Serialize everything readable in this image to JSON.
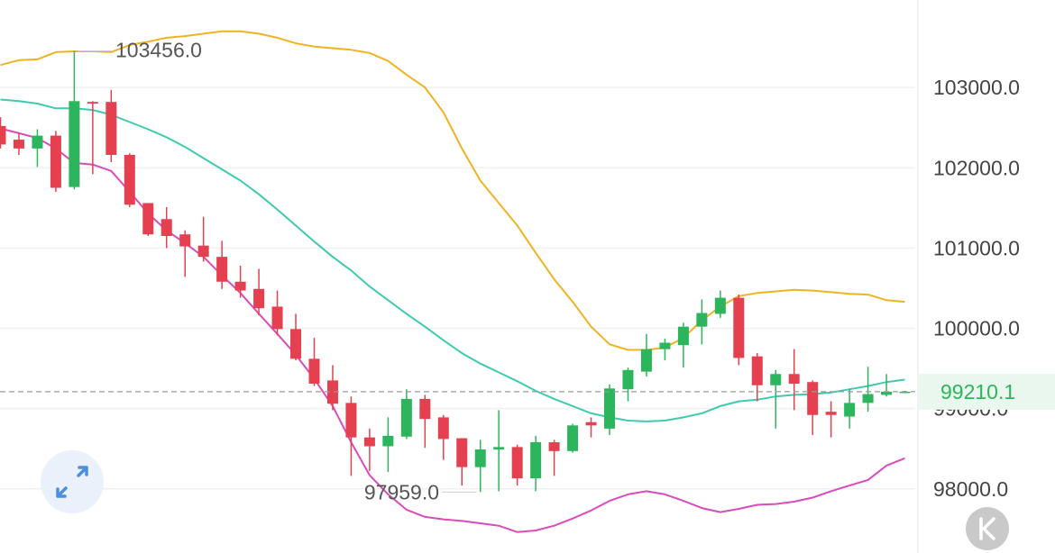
{
  "chart_data": {
    "type": "candlestick",
    "ylim": [
      97200,
      104090
    ],
    "yticks": [
      {
        "value": 98000,
        "label": "98000.0"
      },
      {
        "value": 99000,
        "label": "99000.0"
      },
      {
        "value": 100000,
        "label": "100000.0"
      },
      {
        "value": 101000,
        "label": "101000.0"
      },
      {
        "value": 102000,
        "label": "102000.0"
      },
      {
        "value": 103000,
        "label": "103000.0"
      }
    ],
    "grid": true,
    "up_color": "#2db55d",
    "down_color": "#e5404f",
    "candles": {
      "open": [
        102520,
        102350,
        102240,
        102400,
        101760,
        102820,
        102820,
        102160,
        101560,
        101360,
        101170,
        101030,
        100890,
        100580,
        100490,
        100270,
        99990,
        99620,
        99350,
        99070,
        98640,
        98530,
        98650,
        99120,
        98890,
        98630,
        98270,
        98490,
        98520,
        98130,
        98580,
        98470,
        98830,
        98750,
        99240,
        99460,
        99740,
        99790,
        100020,
        100180,
        100380,
        99650,
        99290,
        99430,
        99330,
        98960,
        98900,
        99070,
        99170,
        99200
      ],
      "high": [
        102630,
        102430,
        102480,
        102460,
        103456,
        102830,
        102970,
        102180,
        101560,
        101510,
        101220,
        101390,
        101090,
        100780,
        100740,
        100470,
        100180,
        99880,
        99540,
        99150,
        98750,
        98890,
        99240,
        99170,
        98920,
        98630,
        98610,
        98980,
        98550,
        98660,
        98610,
        98810,
        98890,
        99300,
        99510,
        99930,
        99870,
        100070,
        100360,
        100470,
        100420,
        99690,
        99480,
        99740,
        99350,
        99090,
        99240,
        99520,
        99430,
        99220
      ],
      "low": [
        102240,
        102160,
        102010,
        101700,
        101730,
        101920,
        102070,
        101510,
        101150,
        101000,
        100640,
        100830,
        100490,
        100380,
        100160,
        99910,
        99600,
        99280,
        98980,
        98160,
        98220,
        98210,
        98620,
        98510,
        98360,
        98040,
        97959,
        97970,
        98040,
        97970,
        98160,
        98450,
        98640,
        98670,
        99090,
        99400,
        99600,
        99510,
        99800,
        100130,
        99540,
        99090,
        98750,
        98980,
        98670,
        98640,
        98750,
        98960,
        99150,
        99190
      ],
      "close": [
        102290,
        102240,
        102400,
        101750,
        102830,
        102800,
        102160,
        101540,
        101170,
        101150,
        101020,
        100890,
        100580,
        100470,
        100250,
        99990,
        99620,
        99310,
        99060,
        98640,
        98530,
        98660,
        99120,
        98870,
        98620,
        98270,
        98490,
        98520,
        98130,
        98580,
        98470,
        98790,
        98790,
        99250,
        99480,
        99740,
        99820,
        100020,
        100190,
        100380,
        99630,
        99290,
        99430,
        99310,
        98920,
        98920,
        99070,
        99180,
        99210,
        99210.1
      ]
    },
    "lines": [
      {
        "color": "#f0b322",
        "values": [
          103280,
          103340,
          103350,
          103440,
          103450,
          103450,
          103440,
          103530,
          103570,
          103620,
          103640,
          103670,
          103700,
          103700,
          103670,
          103620,
          103550,
          103510,
          103490,
          103470,
          103430,
          103330,
          103160,
          103000,
          102690,
          102240,
          101840,
          101560,
          101280,
          100940,
          100610,
          100330,
          100020,
          99800,
          99730,
          99730,
          99760,
          99880,
          100100,
          100270,
          100400,
          100440,
          100460,
          100480,
          100470,
          100450,
          100430,
          100420,
          100350,
          100330
        ]
      },
      {
        "color": "#3fcab0",
        "values": [
          102850,
          102830,
          102800,
          102740,
          102740,
          102720,
          102660,
          102570,
          102480,
          102380,
          102260,
          102120,
          101980,
          101840,
          101670,
          101480,
          101280,
          101080,
          100890,
          100720,
          100520,
          100350,
          100180,
          100020,
          99850,
          99690,
          99560,
          99450,
          99340,
          99220,
          99120,
          99030,
          98940,
          98890,
          98850,
          98840,
          98850,
          98890,
          98940,
          99030,
          99090,
          99110,
          99150,
          99170,
          99180,
          99200,
          99240,
          99280,
          99330,
          99360
        ]
      },
      {
        "color": "#d84cbc",
        "values": [
          102490,
          102430,
          102370,
          102240,
          102060,
          102040,
          101960,
          101700,
          101430,
          101220,
          101060,
          100890,
          100660,
          100440,
          100180,
          99930,
          99670,
          99370,
          99030,
          98580,
          98170,
          97930,
          97740,
          97650,
          97620,
          97600,
          97570,
          97540,
          97460,
          97480,
          97540,
          97630,
          97730,
          97850,
          97930,
          97970,
          97930,
          97850,
          97760,
          97710,
          97750,
          97800,
          97810,
          97840,
          97890,
          97970,
          98040,
          98110,
          98290,
          98380
        ]
      }
    ],
    "high_label": {
      "value": 103456,
      "label": "103456.0"
    },
    "low_label": {
      "value": 97959,
      "label": "97959.0"
    },
    "last_price": 99210.1,
    "last_price_color": "#2db55d"
  }
}
